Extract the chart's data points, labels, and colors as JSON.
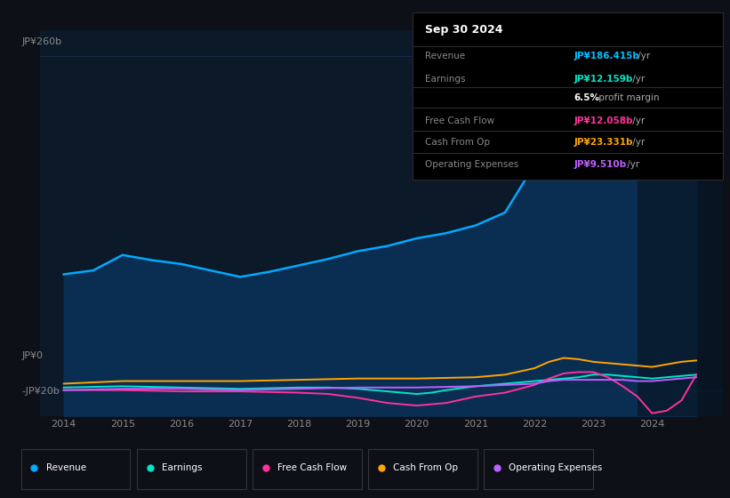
{
  "bg_color": "#0d1117",
  "plot_bg_color": "#0b1929",
  "info_bg_color": "#000000",
  "legend_bg_color": "#0d1117",
  "grid_color": "#1a3050",
  "text_color_dim": "#888888",
  "text_color_bright": "#cccccc",
  "date_label": "Sep 30 2024",
  "info_rows": [
    {
      "label": "Revenue",
      "value": "JP¥186.415b",
      "suffix": " /yr",
      "vcolor": "#00bfff",
      "label_color": "#888888"
    },
    {
      "label": "Earnings",
      "value": "JP¥12.159b",
      "suffix": " /yr",
      "vcolor": "#00e5c8",
      "label_color": "#888888"
    },
    {
      "label": "",
      "value": "6.5%",
      "suffix": " profit margin",
      "vcolor": "#ffffff",
      "label_color": "#888888"
    },
    {
      "label": "Free Cash Flow",
      "value": "JP¥12.058b",
      "suffix": " /yr",
      "vcolor": "#ff3399",
      "label_color": "#888888"
    },
    {
      "label": "Cash From Op",
      "value": "JP¥23.331b",
      "suffix": " /yr",
      "vcolor": "#ffa500",
      "label_color": "#888888"
    },
    {
      "label": "Operating Expenses",
      "value": "JP¥9.510b",
      "suffix": " /yr",
      "vcolor": "#bf5fff",
      "label_color": "#888888"
    }
  ],
  "ylim": [
    -20,
    280
  ],
  "ytick_vals": [
    -20,
    0,
    260
  ],
  "ytick_labels": [
    "-JP¥20b",
    "JP¥0",
    "JP¥260b"
  ],
  "xtick_vals": [
    2014,
    2015,
    2016,
    2017,
    2018,
    2019,
    2020,
    2021,
    2022,
    2023,
    2024
  ],
  "xlim": [
    2013.6,
    2025.2
  ],
  "revenue_color": "#00aaff",
  "earnings_color": "#00e5c8",
  "free_cash_flow_color": "#ff3399",
  "cash_from_op_color": "#ffa500",
  "operating_expenses_color": "#bf5fff",
  "revenue_fill_color": "#0a2d52",
  "shade_start": 2023.75,
  "legend_items": [
    {
      "label": "Revenue",
      "color": "#00aaff"
    },
    {
      "label": "Earnings",
      "color": "#00e5c8"
    },
    {
      "label": "Free Cash Flow",
      "color": "#ff3399"
    },
    {
      "label": "Cash From Op",
      "color": "#ffa500"
    },
    {
      "label": "Operating Expenses",
      "color": "#bf5fff"
    }
  ]
}
